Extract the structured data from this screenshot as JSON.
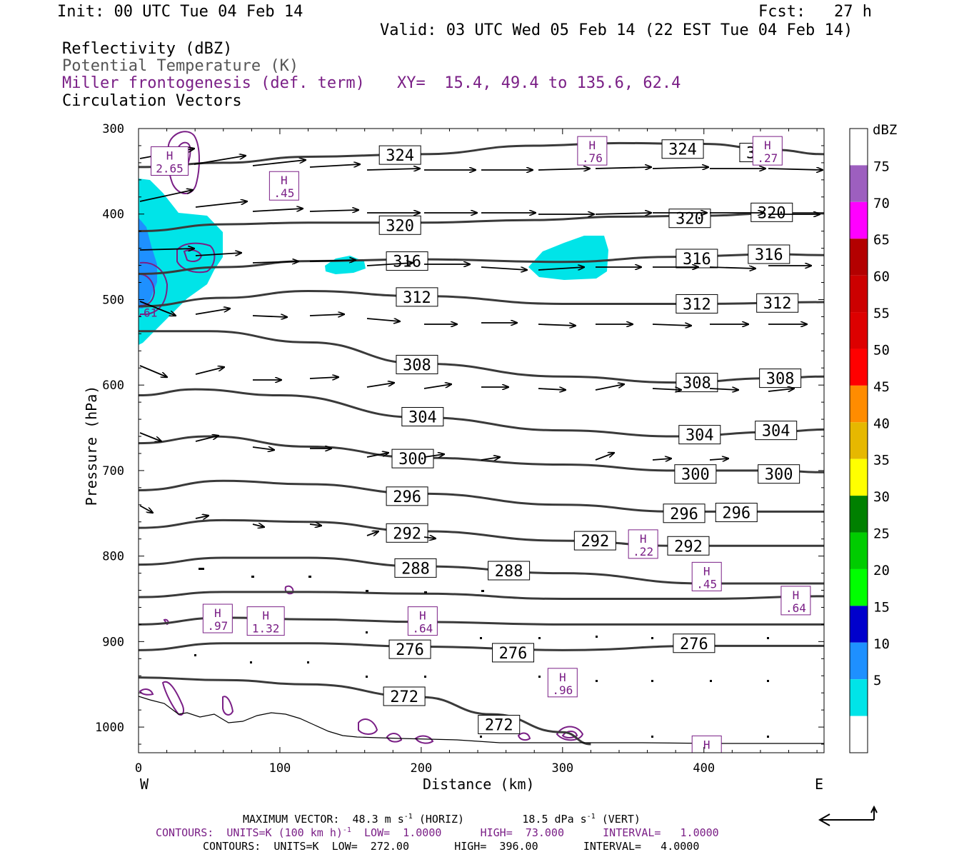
{
  "header": {
    "init": "Init: 00 UTC Tue 04 Feb 14",
    "fcst": "Fcst:   27 h",
    "valid": "Valid: 03 UTC Wed 05 Feb 14 (22 EST Tue 04 Feb 14)",
    "field1": "Reflectivity (dBZ)",
    "field2": "Potential Temperature (K)",
    "field3": "Miller frontogenesis (def. term)",
    "xy": "XY=  15.4, 49.4 to 135.6, 62.4",
    "field4": "Circulation Vectors"
  },
  "colors": {
    "theta": "#3a3a3a",
    "frontogenesis": "#7a1f86",
    "vectors": "#000000",
    "refl_5": "#00e4e8",
    "refl_10": "#1e90ff"
  },
  "chart_data": {
    "type": "cross-section",
    "xlabel": "Distance (km)",
    "ylabel": "Pressure (hPa)",
    "xlim": [
      0,
      485
    ],
    "ylim": [
      1030,
      300
    ],
    "xticks": [
      "0",
      "100",
      "200",
      "300",
      "400"
    ],
    "yticks": [
      "300",
      "400",
      "500",
      "600",
      "700",
      "800",
      "900",
      "1000"
    ],
    "left_end_label": "W",
    "right_end_label": "E",
    "theta_contours": [
      {
        "level": 324,
        "points": [
          [
            0,
            345
          ],
          [
            60,
            340
          ],
          [
            120,
            333
          ],
          [
            200,
            330
          ],
          [
            280,
            320
          ],
          [
            340,
            317
          ],
          [
            400,
            318
          ],
          [
            450,
            325
          ],
          [
            485,
            330
          ]
        ],
        "labels": [
          [
            385,
            324
          ],
          [
            185,
            331
          ],
          [
            440,
            328
          ]
        ]
      },
      {
        "level": 320,
        "points": [
          [
            0,
            420
          ],
          [
            60,
            412
          ],
          [
            120,
            410
          ],
          [
            200,
            410
          ],
          [
            280,
            407
          ],
          [
            340,
            403
          ],
          [
            400,
            402
          ],
          [
            450,
            399
          ],
          [
            485,
            399
          ]
        ],
        "labels": [
          [
            390,
            405
          ],
          [
            185,
            413
          ],
          [
            448,
            398
          ]
        ]
      },
      {
        "level": 316,
        "points": [
          [
            0,
            470
          ],
          [
            60,
            462
          ],
          [
            120,
            455
          ],
          [
            200,
            453
          ],
          [
            300,
            456
          ],
          [
            380,
            450
          ],
          [
            450,
            447
          ],
          [
            485,
            448
          ]
        ],
        "labels": [
          [
            190,
            455
          ],
          [
            395,
            452
          ],
          [
            446,
            447
          ]
        ]
      },
      {
        "level": 312,
        "points": [
          [
            0,
            508
          ],
          [
            60,
            498
          ],
          [
            120,
            490
          ],
          [
            200,
            496
          ],
          [
            300,
            505
          ],
          [
            400,
            505
          ],
          [
            485,
            503
          ]
        ],
        "labels": [
          [
            197,
            497
          ],
          [
            395,
            505
          ],
          [
            452,
            504
          ]
        ]
      },
      {
        "level": 308,
        "points": [
          [
            0,
            537
          ],
          [
            50,
            537
          ],
          [
            120,
            550
          ],
          [
            200,
            575
          ],
          [
            300,
            590
          ],
          [
            380,
            597
          ],
          [
            450,
            592
          ],
          [
            485,
            590
          ]
        ],
        "labels": [
          [
            197,
            576
          ],
          [
            395,
            597
          ],
          [
            454,
            592
          ]
        ]
      },
      {
        "level": 304,
        "points": [
          [
            0,
            612
          ],
          [
            40,
            605
          ],
          [
            100,
            612
          ],
          [
            200,
            638
          ],
          [
            300,
            653
          ],
          [
            380,
            660
          ],
          [
            450,
            655
          ],
          [
            485,
            652
          ]
        ],
        "labels": [
          [
            201,
            637
          ],
          [
            397,
            658
          ],
          [
            451,
            653
          ]
        ]
      },
      {
        "level": 300,
        "points": [
          [
            0,
            668
          ],
          [
            50,
            660
          ],
          [
            120,
            672
          ],
          [
            200,
            685
          ],
          [
            300,
            693
          ],
          [
            380,
            700
          ],
          [
            450,
            700
          ],
          [
            485,
            702
          ]
        ],
        "labels": [
          [
            194,
            686
          ],
          [
            394,
            704
          ],
          [
            453,
            704
          ]
        ]
      },
      {
        "level": 296,
        "points": [
          [
            0,
            723
          ],
          [
            60,
            712
          ],
          [
            120,
            716
          ],
          [
            200,
            727
          ],
          [
            300,
            740
          ],
          [
            380,
            748
          ],
          [
            485,
            748
          ]
        ],
        "labels": [
          [
            190,
            730
          ],
          [
            386,
            750
          ],
          [
            423,
            749
          ]
        ]
      },
      {
        "level": 292,
        "points": [
          [
            0,
            767
          ],
          [
            60,
            758
          ],
          [
            120,
            760
          ],
          [
            200,
            771
          ],
          [
            300,
            782
          ],
          [
            380,
            788
          ],
          [
            485,
            788
          ]
        ],
        "labels": [
          [
            190,
            773
          ],
          [
            323,
            782
          ],
          [
            389,
            788
          ]
        ]
      },
      {
        "level": 288,
        "points": [
          [
            0,
            810
          ],
          [
            60,
            802
          ],
          [
            120,
            802
          ],
          [
            200,
            812
          ],
          [
            300,
            820
          ],
          [
            400,
            832
          ],
          [
            485,
            832
          ]
        ],
        "labels": [
          [
            196,
            814
          ],
          [
            262,
            817
          ]
        ]
      },
      {
        "level": 284,
        "points": [
          [
            0,
            848
          ],
          [
            60,
            842
          ],
          [
            120,
            842
          ],
          [
            200,
            844
          ],
          [
            300,
            850
          ],
          [
            400,
            850
          ],
          [
            485,
            847
          ]
        ],
        "labels": []
      },
      {
        "level": 280,
        "points": [
          [
            0,
            880
          ],
          [
            60,
            872
          ],
          [
            120,
            874
          ],
          [
            200,
            877
          ],
          [
            300,
            880
          ],
          [
            400,
            880
          ],
          [
            485,
            880
          ]
        ],
        "labels": []
      },
      {
        "level": 276,
        "points": [
          [
            0,
            910
          ],
          [
            60,
            902
          ],
          [
            120,
            902
          ],
          [
            200,
            906
          ],
          [
            300,
            910
          ],
          [
            400,
            905
          ],
          [
            485,
            905
          ]
        ],
        "labels": [
          [
            192,
            909
          ],
          [
            265,
            913
          ],
          [
            393,
            902
          ]
        ]
      },
      {
        "level": 272,
        "points": [
          [
            0,
            942
          ],
          [
            60,
            945
          ],
          [
            120,
            950
          ],
          [
            200,
            965
          ],
          [
            250,
            985
          ],
          [
            300,
            1006
          ],
          [
            320,
            1020
          ]
        ],
        "labels": [
          [
            188,
            964
          ],
          [
            255,
            997
          ]
        ]
      }
    ],
    "frontogenesis_maxima": [
      {
        "label": "H",
        "value": "2.65",
        "x": 22,
        "p": 338
      },
      {
        "label": "H",
        "value": ".45",
        "x": 103,
        "p": 367
      },
      {
        "label": "H",
        "value": ".76",
        "x": 321,
        "p": 326
      },
      {
        "label": "H",
        "value": ".27",
        "x": 445,
        "p": 326
      },
      {
        "label": "H",
        "value": ".22",
        "x": 357,
        "p": 786
      },
      {
        "label": "H",
        "value": ".45",
        "x": 402,
        "p": 824
      },
      {
        "label": "H",
        "value": ".64",
        "x": 465,
        "p": 852
      },
      {
        "label": "H",
        "value": ".97",
        "x": 56,
        "p": 873
      },
      {
        "label": "H",
        "value": "1.32",
        "x": 90,
        "p": 876
      },
      {
        "label": "H",
        "value": ".64",
        "x": 201,
        "p": 876
      },
      {
        "label": "H",
        "value": ".96",
        "x": 300,
        "p": 948
      },
      {
        "label": "H",
        "value": ".22",
        "x": 402,
        "p": 1027
      },
      {
        "label": "",
        "value": ".61",
        "x": 6,
        "p": 515
      }
    ],
    "reflectivity_scale": {
      "label": "dBZ",
      "levels": [
        {
          "v": "75",
          "c": "#9d5fbf"
        },
        {
          "v": "70",
          "c": "#ff00ff"
        },
        {
          "v": "65",
          "c": "#b30000"
        },
        {
          "v": "60",
          "c": "#cc0000"
        },
        {
          "v": "55",
          "c": "#dd0000"
        },
        {
          "v": "50",
          "c": "#ff0000"
        },
        {
          "v": "45",
          "c": "#ff8c00"
        },
        {
          "v": "40",
          "c": "#e6b800"
        },
        {
          "v": "35",
          "c": "#ffff00"
        },
        {
          "v": "30",
          "c": "#008000"
        },
        {
          "v": "25",
          "c": "#00cc00"
        },
        {
          "v": "20",
          "c": "#00ff00"
        },
        {
          "v": "15",
          "c": "#0000cc"
        },
        {
          "v": "10",
          "c": "#1e90ff"
        },
        {
          "v": "5",
          "c": "#00e4e8"
        }
      ],
      "top_color": "#ffffff",
      "bottom_color": "#ffffff"
    }
  },
  "footer": {
    "max_vector_label": "MAXIMUM VECTOR:  48.3 m s",
    "max_vector_horiz": "(HORIZ)",
    "max_vector_vert": "18.5 dPa s",
    "max_vector_vert_tail": "(VERT)",
    "exp": "-1",
    "contours1_a": "CONTOURS:  UNITS=K (100 km h)",
    "contours1_b": "LOW=  1.0000      HIGH=  73.000      INTERVAL=   1.0000",
    "contours2": "CONTOURS:  UNITS=K  LOW=  272.00       HIGH=  396.00       INTERVAL=   4.0000"
  }
}
